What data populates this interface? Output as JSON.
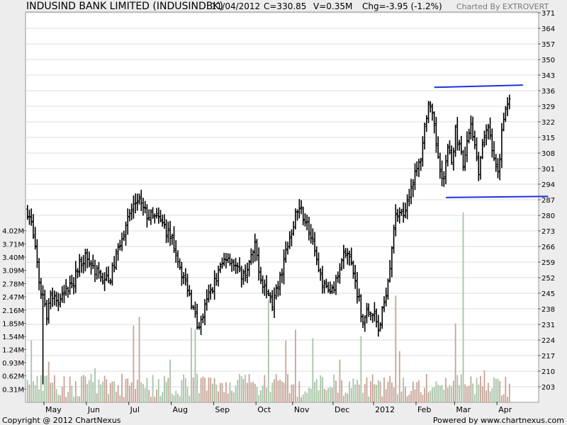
{
  "header": {
    "title": "INDUSIND BANK LIMITED (INDUSINDBK)",
    "date": "11/04/2012",
    "close": "C=330.85",
    "volume": "V=0.35M",
    "change": "Chg=-3.95 (-1.2%)",
    "credit": "Charted By EXTROVERT"
  },
  "footer": {
    "copyright": "Copyright @ 2012 ChartNexus",
    "powered": "Powered by www.chartnexus.com"
  },
  "chart_data": {
    "type": "bar",
    "price_axis": {
      "ticks": [
        203,
        210,
        217,
        224,
        231,
        238,
        245,
        252,
        259,
        266,
        273,
        280,
        287,
        294,
        301,
        308,
        315,
        322,
        329,
        336,
        343,
        350,
        357,
        364,
        371
      ],
      "range": [
        196,
        371
      ]
    },
    "volume_axis": {
      "ticks": [
        "0.31M",
        "0.62M",
        "0.93M",
        "1.24M",
        "1.54M",
        "1.85M",
        "2.16M",
        "2.47M",
        "2.78M",
        "3.09M",
        "3.40M",
        "3.71M",
        "4.02M"
      ],
      "tick_values": [
        0.31,
        0.62,
        0.93,
        1.24,
        1.54,
        1.85,
        2.16,
        2.47,
        2.78,
        3.09,
        3.4,
        3.71,
        4.02
      ],
      "range": [
        0,
        4.33
      ]
    },
    "months": [
      {
        "label": "May",
        "day": 0
      },
      {
        "label": "Jun",
        "day": 22
      },
      {
        "label": "Jul",
        "day": 44
      },
      {
        "label": "Aug",
        "day": 66
      },
      {
        "label": "Sep",
        "day": 88
      },
      {
        "label": "Oct",
        "day": 110
      },
      {
        "label": "Nov",
        "day": 129
      },
      {
        "label": "Dec",
        "day": 150
      },
      {
        "label": "2012",
        "day": 171
      },
      {
        "label": "Feb",
        "day": 193
      },
      {
        "label": "Mar",
        "day": 213
      },
      {
        "label": "Apr",
        "day": 235
      }
    ],
    "last_day": 240,
    "price_anchors": [
      [
        -10,
        282
      ],
      [
        -8,
        276
      ],
      [
        -6,
        266
      ],
      [
        -4,
        248
      ],
      [
        -2,
        244
      ],
      [
        0,
        236
      ],
      [
        2,
        245
      ],
      [
        4,
        243
      ],
      [
        7,
        241
      ],
      [
        10,
        246
      ],
      [
        14,
        251
      ],
      [
        17,
        258
      ],
      [
        20,
        262
      ],
      [
        23,
        258
      ],
      [
        26,
        254
      ],
      [
        29,
        252
      ],
      [
        32,
        250
      ],
      [
        35,
        258
      ],
      [
        38,
        268
      ],
      [
        41,
        276
      ],
      [
        44,
        282
      ],
      [
        47,
        288
      ],
      [
        49,
        284
      ],
      [
        52,
        280
      ],
      [
        55,
        279
      ],
      [
        58,
        278
      ],
      [
        61,
        275
      ],
      [
        64,
        270
      ],
      [
        67,
        264
      ],
      [
        70,
        254
      ],
      [
        73,
        248
      ],
      [
        76,
        238
      ],
      [
        78,
        230
      ],
      [
        80,
        232
      ],
      [
        82,
        238
      ],
      [
        84,
        244
      ],
      [
        87,
        250
      ],
      [
        90,
        256
      ],
      [
        93,
        262
      ],
      [
        96,
        260
      ],
      [
        99,
        255
      ],
      [
        102,
        253
      ],
      [
        105,
        258
      ],
      [
        108,
        266
      ],
      [
        111,
        252
      ],
      [
        114,
        246
      ],
      [
        117,
        240
      ],
      [
        120,
        248
      ],
      [
        123,
        260
      ],
      [
        126,
        270
      ],
      [
        129,
        280
      ],
      [
        132,
        282
      ],
      [
        135,
        276
      ],
      [
        138,
        266
      ],
      [
        141,
        254
      ],
      [
        144,
        248
      ],
      [
        147,
        246
      ],
      [
        150,
        250
      ],
      [
        153,
        262
      ],
      [
        156,
        265
      ],
      [
        159,
        254
      ],
      [
        162,
        242
      ],
      [
        164,
        232
      ],
      [
        166,
        236
      ],
      [
        168,
        238
      ],
      [
        170,
        235
      ],
      [
        172,
        228
      ],
      [
        174,
        236
      ],
      [
        176,
        246
      ],
      [
        178,
        258
      ],
      [
        180,
        275
      ],
      [
        182,
        282
      ],
      [
        184,
        280
      ],
      [
        186,
        284
      ],
      [
        188,
        290
      ],
      [
        190,
        296
      ],
      [
        192,
        300
      ],
      [
        194,
        306
      ],
      [
        196,
        320
      ],
      [
        198,
        330
      ],
      [
        200,
        324
      ],
      [
        202,
        312
      ],
      [
        204,
        302
      ],
      [
        206,
        296
      ],
      [
        208,
        310
      ],
      [
        210,
        304
      ],
      [
        212,
        318
      ],
      [
        214,
        310
      ],
      [
        216,
        302
      ],
      [
        218,
        312
      ],
      [
        220,
        322
      ],
      [
        222,
        312
      ],
      [
        224,
        300
      ],
      [
        226,
        312
      ],
      [
        228,
        320
      ],
      [
        230,
        314
      ],
      [
        232,
        304
      ],
      [
        234,
        298
      ],
      [
        236,
        316
      ],
      [
        238,
        328
      ],
      [
        240,
        332
      ]
    ],
    "lows": [
      {
        "day": -2,
        "price": 204
      }
    ],
    "volume_spikes": [
      {
        "day": -8,
        "value": 1.45
      },
      {
        "day": 1,
        "value": 0.95
      },
      {
        "day": 25,
        "value": 0.8
      },
      {
        "day": 45,
        "value": 1.8
      },
      {
        "day": 48,
        "value": 2.0
      },
      {
        "day": 64,
        "value": 1.0
      },
      {
        "day": 75,
        "value": 1.75
      },
      {
        "day": 77,
        "value": 1.7
      },
      {
        "day": 115,
        "value": 2.4
      },
      {
        "day": 124,
        "value": 1.45
      },
      {
        "day": 129,
        "value": 1.7
      },
      {
        "day": 138,
        "value": 1.5
      },
      {
        "day": 152,
        "value": 1.0
      },
      {
        "day": 163,
        "value": 1.55
      },
      {
        "day": 181,
        "value": 2.5
      },
      {
        "day": 183,
        "value": 1.2
      },
      {
        "day": 212,
        "value": 1.85
      },
      {
        "day": 216,
        "value": 4.45
      },
      {
        "day": 227,
        "value": 0.75
      },
      {
        "day": 233,
        "value": 0.55
      }
    ],
    "trendlines": [
      {
        "from": {
          "day": 201,
          "price": 337.5
        },
        "to": {
          "day": 247,
          "price": 338.5
        }
      },
      {
        "from": {
          "day": 207,
          "price": 288
        },
        "to": {
          "day": 260,
          "price": 288.5
        }
      }
    ],
    "colors": {
      "background": "#ffffff",
      "frame": "#ededed",
      "price_bars": "#000000",
      "volume_up": "#c6a497",
      "volume_down": "#a7c3a7",
      "trendline": "#2030e0",
      "grid": "#dcdcdc"
    }
  }
}
